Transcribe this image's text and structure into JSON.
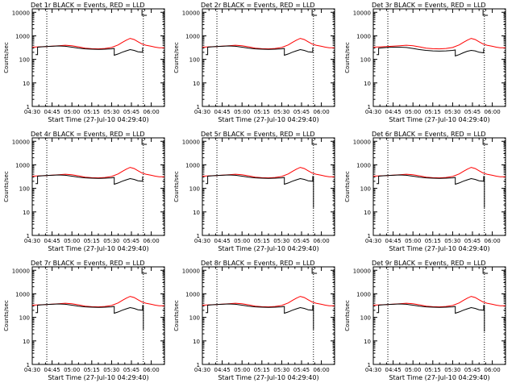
{
  "panel_titles": [
    "Det 1r BLACK = Events, RED = LLD",
    "Det 2r BLACK = Events, RED = LLD",
    "Det 3r BLACK = Events, RED = LLD",
    "Det 4r BLACK = Events, RED = LLD",
    "Det 5r BLACK = Events, RED = LLD",
    "Det 6r BLACK = Events, RED = LLD",
    "Det 7r BLACK = Events, RED = LLD",
    "Det 8r BLACK = Events, RED = LLD",
    "Det 9r BLACK = Events, RED = LLD"
  ],
  "axes": {
    "xlabel": "Start Time (27-Jul-10 04:29:40)",
    "ylabel": "Counts/sec",
    "x_ticks": [
      "04:30",
      "04:45",
      "05:00",
      "05:15",
      "05:30",
      "05:45",
      "06:00"
    ],
    "y_ticks": [
      "1",
      "10",
      "100",
      "1000",
      "10000"
    ]
  },
  "colors": {
    "events": "#000000",
    "lld": "#ff0000",
    "axes": "#000000",
    "background": "#ffffff"
  },
  "chart_data": {
    "type": "line",
    "layout": "3x3 grid",
    "y_scale": "log",
    "xlim_minutes_from_0430": [
      0,
      100
    ],
    "ylim": [
      1,
      14000
    ],
    "vertical_dotted_lines_minutes": [
      11,
      84,
      99.5
    ],
    "lld_series": {
      "x_min": [
        0,
        10,
        20,
        25,
        30,
        35,
        40,
        45,
        50,
        55,
        60,
        65,
        68,
        71,
        74,
        77,
        80,
        83,
        86,
        88,
        90,
        93,
        96,
        100
      ],
      "y": [
        330,
        350,
        380,
        400,
        380,
        340,
        300,
        285,
        280,
        290,
        320,
        410,
        520,
        650,
        780,
        700,
        560,
        450,
        400,
        380,
        360,
        330,
        310,
        310
      ]
    },
    "panels": [
      {
        "name": "Det 1r",
        "events_x": [
          2.5,
          4,
          4,
          10,
          15,
          20,
          25,
          30,
          35,
          40,
          45,
          50,
          55,
          60,
          62,
          62,
          65,
          68,
          71,
          74,
          77,
          80,
          83.5,
          83.5
        ],
        "events_y": [
          160,
          160,
          330,
          350,
          360,
          370,
          360,
          330,
          300,
          280,
          270,
          265,
          270,
          280,
          290,
          150,
          170,
          200,
          230,
          260,
          240,
          210,
          200,
          320
        ]
      },
      {
        "name": "Det 2r",
        "events_x": [
          2.5,
          4,
          4,
          10,
          15,
          20,
          25,
          30,
          35,
          40,
          45,
          50,
          55,
          60,
          62,
          62,
          65,
          68,
          71,
          74,
          77,
          80,
          83.5,
          83.5
        ],
        "events_y": [
          160,
          160,
          330,
          350,
          360,
          370,
          360,
          330,
          300,
          280,
          270,
          265,
          270,
          280,
          290,
          150,
          170,
          200,
          230,
          260,
          240,
          210,
          200,
          320
        ]
      },
      {
        "name": "Det 3r",
        "events_x": [
          2.5,
          4,
          4,
          10,
          15,
          20,
          25,
          30,
          35,
          40,
          45,
          50,
          55,
          60,
          62,
          62,
          65,
          68,
          71,
          74,
          77,
          80,
          83.5,
          83.5
        ],
        "events_y": [
          160,
          160,
          300,
          320,
          330,
          330,
          320,
          290,
          260,
          240,
          230,
          225,
          230,
          240,
          250,
          140,
          160,
          190,
          220,
          240,
          230,
          200,
          190,
          290
        ]
      },
      {
        "name": "Det 4r",
        "events_x": [
          2.5,
          4,
          4,
          10,
          15,
          20,
          25,
          30,
          35,
          40,
          45,
          50,
          55,
          60,
          62,
          62,
          65,
          68,
          71,
          74,
          77,
          80,
          83.5,
          83.5
        ],
        "events_y": [
          160,
          160,
          330,
          350,
          360,
          370,
          360,
          330,
          300,
          280,
          270,
          265,
          270,
          280,
          290,
          150,
          170,
          200,
          230,
          260,
          240,
          210,
          200,
          320
        ]
      },
      {
        "name": "Det 5r",
        "events_x": [
          2.5,
          4,
          4,
          10,
          15,
          20,
          25,
          30,
          35,
          40,
          45,
          50,
          55,
          60,
          62,
          62,
          65,
          68,
          71,
          74,
          77,
          80,
          83.5,
          83.5,
          84,
          84
        ],
        "events_y": [
          160,
          160,
          330,
          350,
          360,
          370,
          360,
          330,
          300,
          280,
          270,
          265,
          270,
          280,
          290,
          150,
          170,
          200,
          230,
          260,
          240,
          210,
          200,
          320,
          320,
          15
        ]
      },
      {
        "name": "Det 6r",
        "events_x": [
          2.5,
          4,
          4,
          10,
          15,
          20,
          25,
          30,
          35,
          40,
          45,
          50,
          55,
          60,
          62,
          62,
          65,
          68,
          71,
          74,
          77,
          80,
          83.5,
          83.5,
          84,
          84
        ],
        "events_y": [
          160,
          160,
          330,
          350,
          360,
          370,
          360,
          330,
          300,
          280,
          270,
          265,
          270,
          280,
          290,
          150,
          170,
          200,
          230,
          260,
          240,
          210,
          200,
          320,
          320,
          15
        ]
      },
      {
        "name": "Det 7r",
        "events_x": [
          2.5,
          4,
          4,
          10,
          15,
          20,
          25,
          30,
          35,
          40,
          45,
          50,
          55,
          60,
          62,
          62,
          65,
          68,
          71,
          74,
          77,
          80,
          83.5,
          83.5,
          84,
          84
        ],
        "events_y": [
          160,
          160,
          330,
          350,
          360,
          370,
          360,
          330,
          300,
          280,
          270,
          265,
          270,
          280,
          290,
          150,
          170,
          200,
          230,
          260,
          240,
          210,
          200,
          320,
          320,
          30
        ]
      },
      {
        "name": "Det 8r",
        "events_x": [
          2.5,
          4,
          4,
          10,
          15,
          20,
          25,
          30,
          35,
          40,
          45,
          50,
          55,
          60,
          62,
          62,
          65,
          68,
          71,
          74,
          77,
          80,
          83.5,
          83.5,
          84,
          84
        ],
        "events_y": [
          160,
          160,
          330,
          350,
          360,
          370,
          360,
          330,
          300,
          280,
          270,
          265,
          270,
          280,
          290,
          150,
          170,
          200,
          230,
          260,
          240,
          210,
          200,
          320,
          320,
          30
        ]
      },
      {
        "name": "Det 9r",
        "events_x": [
          2.5,
          4,
          4,
          10,
          15,
          20,
          25,
          30,
          35,
          40,
          45,
          50,
          55,
          60,
          62,
          62,
          65,
          68,
          71,
          74,
          77,
          80,
          83.5,
          83.5,
          84,
          84
        ],
        "events_y": [
          160,
          160,
          330,
          350,
          360,
          370,
          360,
          330,
          300,
          280,
          270,
          265,
          270,
          280,
          290,
          150,
          170,
          200,
          230,
          260,
          240,
          210,
          200,
          320,
          320,
          25
        ]
      }
    ]
  }
}
